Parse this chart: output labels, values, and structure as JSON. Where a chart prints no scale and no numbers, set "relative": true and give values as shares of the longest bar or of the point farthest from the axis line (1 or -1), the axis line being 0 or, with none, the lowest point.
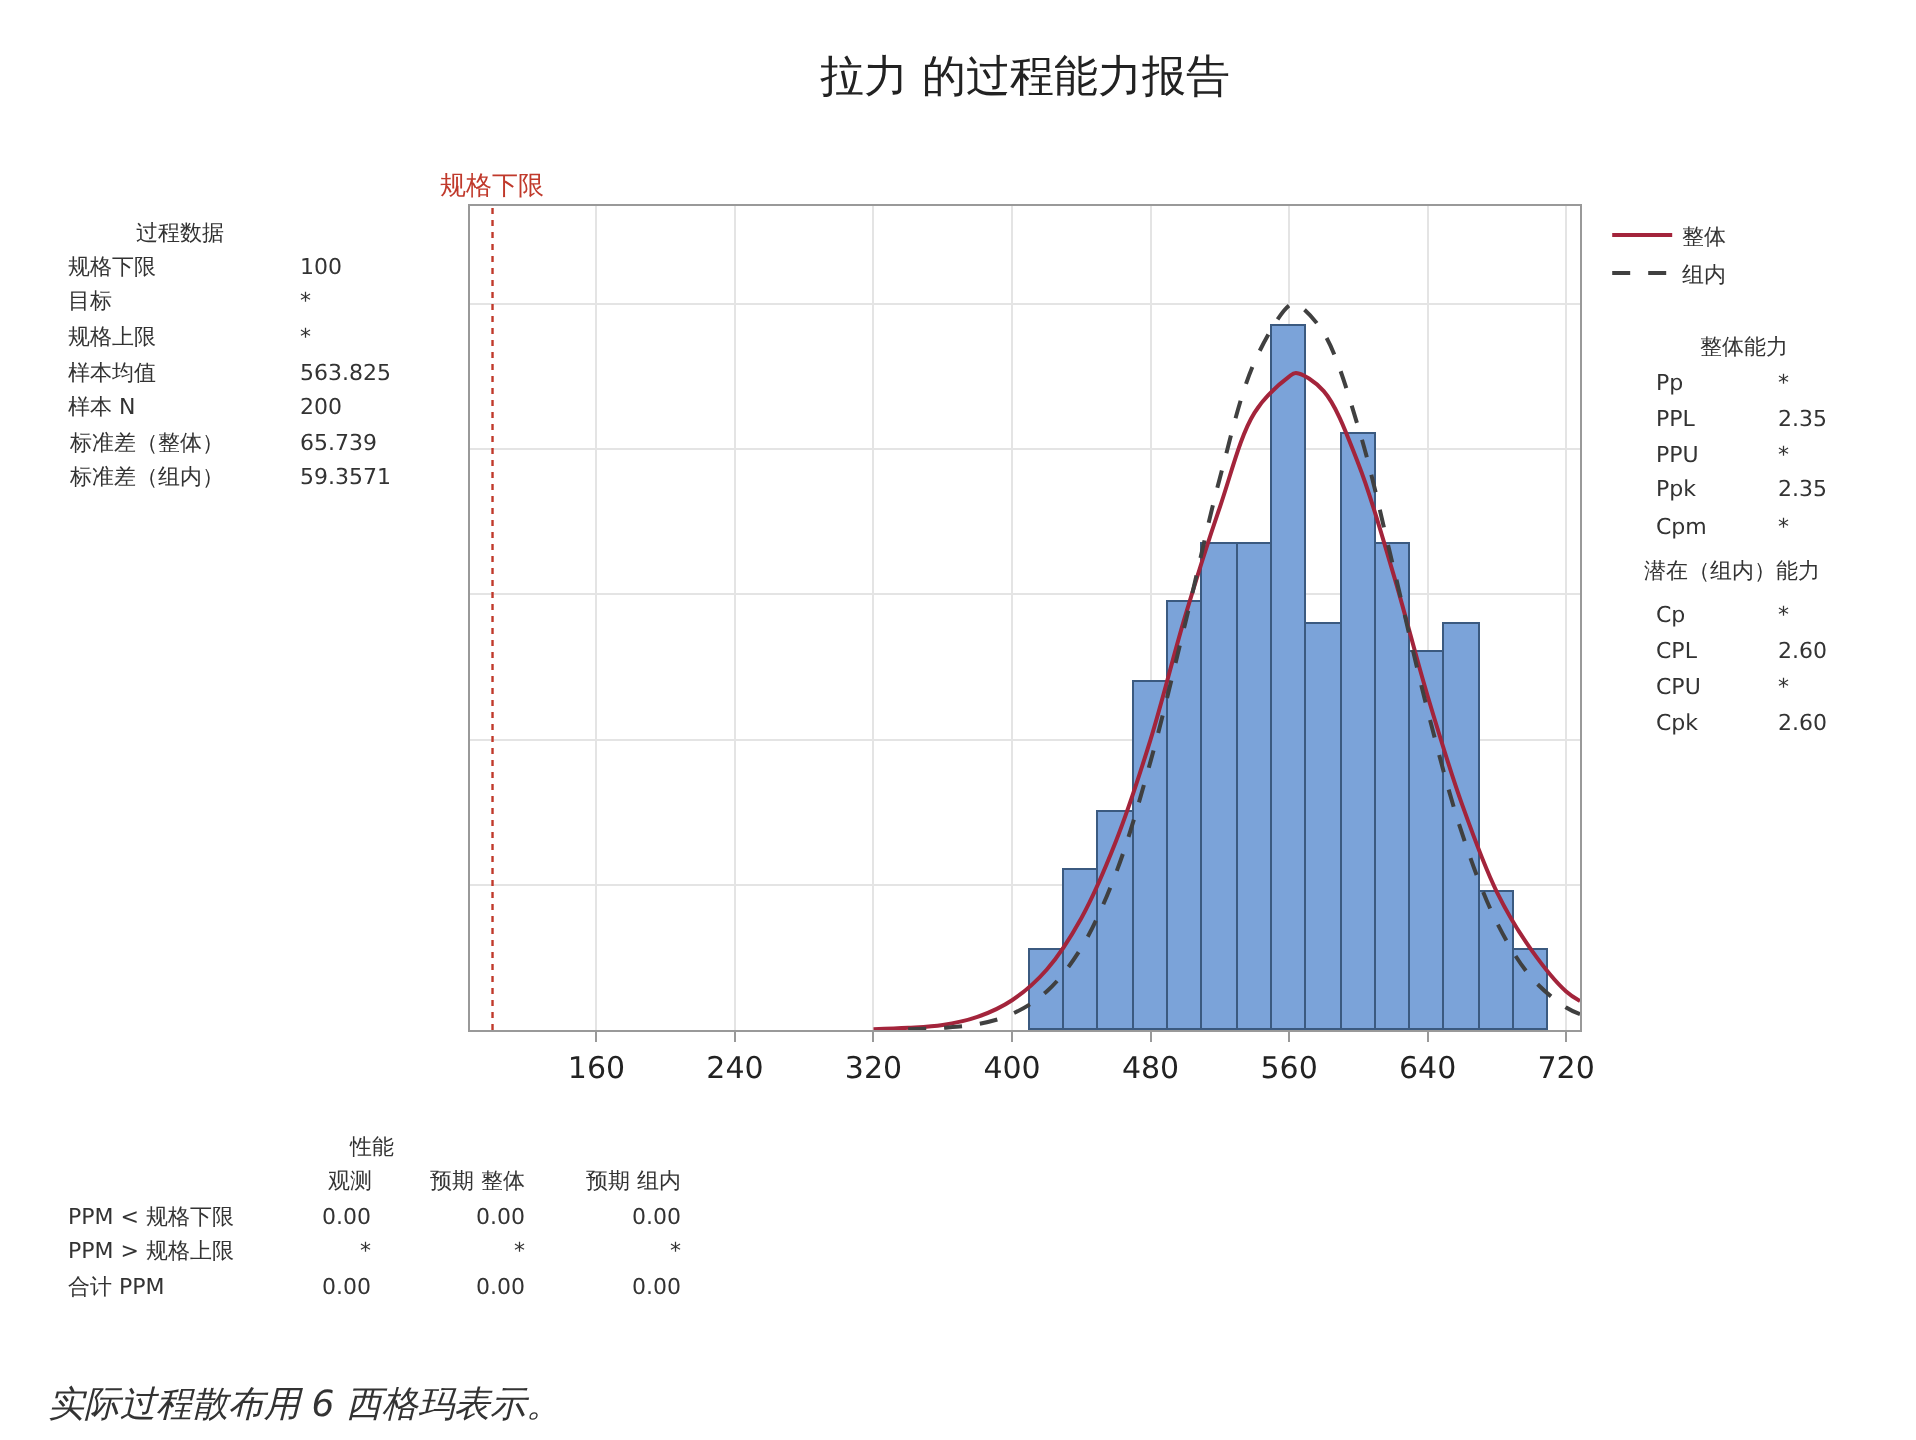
{
  "chart_data": {
    "type": "histogram",
    "title": "拉力 的过程能力报告",
    "relative": true,
    "bins": [
      410,
      430,
      450,
      470,
      490,
      510,
      530,
      550,
      570,
      590,
      610,
      630,
      650,
      670,
      690,
      710
    ],
    "values": [
      0.11,
      0.22,
      0.3,
      0.48,
      0.59,
      0.67,
      0.67,
      0.97,
      0.56,
      0.82,
      0.67,
      0.52,
      0.56,
      0.19,
      0.11
    ],
    "color": "#7ba3d9",
    "xlim": [
      87,
      728
    ],
    "xticks": [
      160,
      240,
      320,
      400,
      480,
      560,
      640,
      720
    ],
    "grid": true,
    "legend": "top right",
    "series": [
      {
        "type": "line",
        "name": "整体",
        "color": "#a3243b",
        "line_style": "solid",
        "x": [
          320,
          340,
          360,
          380,
          400,
          420,
          440,
          460,
          480,
          500,
          520,
          540,
          560,
          564,
          580,
          600,
          620,
          640,
          660,
          680,
          700,
          720,
          728
        ],
        "values": [
          0.001,
          0.003,
          0.007,
          0.018,
          0.041,
          0.083,
          0.154,
          0.26,
          0.4,
          0.57,
          0.72,
          0.85,
          0.9,
          0.905,
          0.88,
          0.78,
          0.63,
          0.46,
          0.31,
          0.19,
          0.11,
          0.053,
          0.04
        ]
      },
      {
        "type": "line",
        "name": "组内",
        "color": "#404040",
        "line_style": "dashed",
        "x": [
          340,
          360,
          380,
          400,
          420,
          440,
          460,
          480,
          500,
          520,
          540,
          560,
          564,
          580,
          600,
          620,
          640,
          660,
          680,
          700,
          720,
          728
        ],
        "values": [
          0.001,
          0.003,
          0.008,
          0.022,
          0.053,
          0.113,
          0.216,
          0.37,
          0.56,
          0.76,
          0.92,
          0.998,
          1.0,
          0.96,
          0.83,
          0.64,
          0.44,
          0.27,
          0.148,
          0.072,
          0.031,
          0.022
        ]
      }
    ],
    "ref_lines": [
      {
        "axis": "x",
        "value": 100,
        "label": "规格下限",
        "color": "#c0392b",
        "line_style": "dotted"
      }
    ],
    "annotations": [
      "过程数据",
      "规格下限\t100\n目标\t*\n规格上限\t*\n样本均值\t563.825\n样本 N\t200\n标准差（整体）\t65.739\n标准差（组内）\t59.3571",
      "整体能力",
      "Pp\t*\nPPL\t2.35\nPPU\t*\nPpk\t2.35\nCpm\t*",
      "潜在（组内）能力",
      "Cp\t*\nCPL\t2.60\nCPU\t*\nCpk\t2.60",
      "性能",
      "\t观测\t预期 整体\t预期 组内\nPPM < 规格下限\t0.00\t0.00\t0.00\nPPM > 规格上限\t*\t*\t*\n合计 PPM\t0.00\t0.00\t0.00",
      "实际过程散布用 6 西格玛表示。"
    ]
  }
}
